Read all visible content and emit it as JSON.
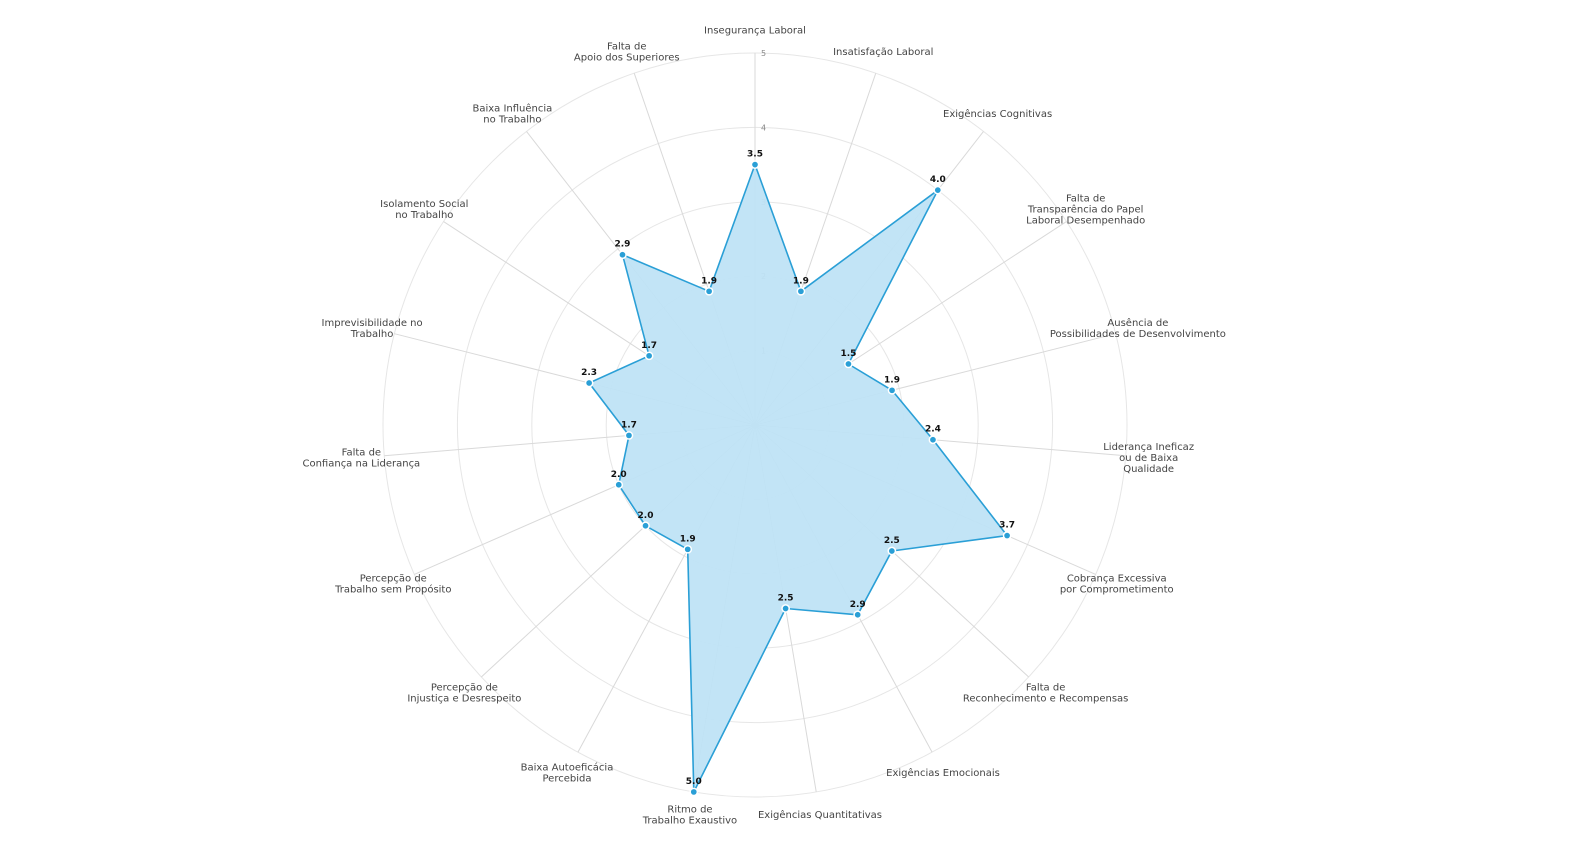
{
  "chart_data": {
    "type": "radar",
    "title": "",
    "rlim": [
      0,
      5
    ],
    "ticks": [
      1,
      2,
      3,
      4,
      5
    ],
    "grid": true,
    "colors": {
      "line": "#2a9fd6",
      "fill": "#bfe3f5",
      "grid": "#e6e6e6"
    },
    "axes": [
      {
        "label": [
          "Insegurança Laboral"
        ],
        "value": 3.5
      },
      {
        "label": [
          "Insatisfação Laboral"
        ],
        "value": 1.9
      },
      {
        "label": [
          "Exigências Cognitivas"
        ],
        "value": 4.0
      },
      {
        "label": [
          "Falta de",
          "Transparência do Papel",
          "Laboral Desempenhado"
        ],
        "value": 1.5
      },
      {
        "label": [
          "Ausência de",
          "Possibilidades de Desenvolvimento"
        ],
        "value": 1.9
      },
      {
        "label": [
          "Liderança Ineficaz",
          "ou de Baixa",
          "Qualidade"
        ],
        "value": 2.4
      },
      {
        "label": [
          "Cobrança Excessiva",
          "por Comprometimento"
        ],
        "value": 3.7
      },
      {
        "label": [
          "Falta de",
          "Reconhecimento e Recompensas"
        ],
        "value": 2.5
      },
      {
        "label": [
          "Exigências Emocionais"
        ],
        "value": 2.9
      },
      {
        "label": [
          "Exigências Quantitativas"
        ],
        "value": 2.5
      },
      {
        "label": [
          "Ritmo de",
          "Trabalho Exaustivo"
        ],
        "value": 5.0
      },
      {
        "label": [
          "Baixa Autoeficácia",
          "Percebida"
        ],
        "value": 1.9
      },
      {
        "label": [
          "Percepção de",
          "Injustiça e Desrespeito"
        ],
        "value": 2.0
      },
      {
        "label": [
          "Percepção de",
          "Trabalho sem Propósito"
        ],
        "value": 2.0
      },
      {
        "label": [
          "Falta de",
          "Confiança na Liderança"
        ],
        "value": 1.7
      },
      {
        "label": [
          "Imprevisibilidade no",
          "Trabalho"
        ],
        "value": 2.3
      },
      {
        "label": [
          "Isolamento Social",
          "no Trabalho"
        ],
        "value": 1.7
      },
      {
        "label": [
          "Baixa Influência",
          "no Trabalho"
        ],
        "value": 2.9
      },
      {
        "label": [
          "Falta de",
          "Apoio dos Superiores"
        ],
        "value": 1.9
      }
    ]
  }
}
